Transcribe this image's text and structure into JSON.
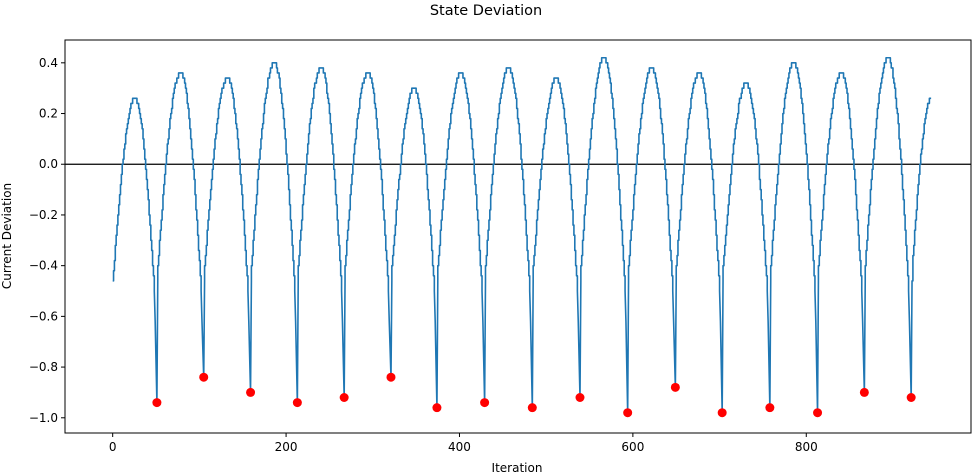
{
  "chart_data": {
    "type": "line",
    "title": "State Deviation",
    "xlabel": "Iteration",
    "ylabel": "Current Deviation",
    "xlim": [
      -55,
      990
    ],
    "ylim": [
      -1.06,
      0.49
    ],
    "xticks": [
      0,
      200,
      400,
      600,
      800
    ],
    "yticks": [
      -1.0,
      -0.8,
      -0.6,
      -0.4,
      -0.2,
      0.0,
      0.2,
      0.4
    ],
    "xtick_labels": [
      "0",
      "200",
      "400",
      "600",
      "800"
    ],
    "ytick_labels": [
      "−1.0",
      "−0.8",
      "−0.6",
      "−0.4",
      "−0.2",
      "0.0",
      "0.2",
      "0.4"
    ],
    "grid": false,
    "reference_line": {
      "y": 0.0,
      "color": "#000000"
    },
    "start": {
      "x": 0,
      "y": -0.46
    },
    "cycles": [
      {
        "x_start": 0,
        "min_x": 51,
        "min_y": -0.94,
        "peak": 0.26
      },
      {
        "x_start": 51,
        "min_x": 105,
        "min_y": -0.84,
        "peak": 0.36
      },
      {
        "x_start": 105,
        "min_x": 159,
        "min_y": -0.9,
        "peak": 0.34
      },
      {
        "x_start": 159,
        "min_x": 213,
        "min_y": -0.94,
        "peak": 0.4
      },
      {
        "x_start": 213,
        "min_x": 267,
        "min_y": -0.92,
        "peak": 0.38
      },
      {
        "x_start": 267,
        "min_x": 321,
        "min_y": -0.84,
        "peak": 0.36
      },
      {
        "x_start": 321,
        "min_x": 374,
        "min_y": -0.96,
        "peak": 0.3
      },
      {
        "x_start": 374,
        "min_x": 429,
        "min_y": -0.94,
        "peak": 0.36
      },
      {
        "x_start": 429,
        "min_x": 484,
        "min_y": -0.96,
        "peak": 0.38
      },
      {
        "x_start": 484,
        "min_x": 539,
        "min_y": -0.92,
        "peak": 0.34
      },
      {
        "x_start": 539,
        "min_x": 594,
        "min_y": -0.98,
        "peak": 0.42
      },
      {
        "x_start": 594,
        "min_x": 649,
        "min_y": -0.88,
        "peak": 0.38
      },
      {
        "x_start": 649,
        "min_x": 703,
        "min_y": -0.98,
        "peak": 0.36
      },
      {
        "x_start": 703,
        "min_x": 758,
        "min_y": -0.96,
        "peak": 0.32
      },
      {
        "x_start": 758,
        "min_x": 813,
        "min_y": -0.98,
        "peak": 0.4
      },
      {
        "x_start": 813,
        "min_x": 867,
        "min_y": -0.9,
        "peak": 0.36
      },
      {
        "x_start": 867,
        "min_x": 921,
        "min_y": -0.92,
        "peak": 0.42
      }
    ],
    "end": {
      "x": 944,
      "y": 0.26
    },
    "series": [
      {
        "type": "line",
        "color": "#1f77b4"
      },
      {
        "type": "scatter",
        "color": "#ff0000",
        "x": [
          51,
          105,
          159,
          213,
          267,
          321,
          374,
          429,
          484,
          539,
          594,
          649,
          703,
          758,
          813,
          867,
          921
        ],
        "y": [
          -0.94,
          -0.84,
          -0.9,
          -0.94,
          -0.92,
          -0.84,
          -0.96,
          -0.94,
          -0.96,
          -0.92,
          -0.98,
          -0.88,
          -0.98,
          -0.96,
          -0.98,
          -0.9,
          -0.92
        ]
      }
    ]
  }
}
